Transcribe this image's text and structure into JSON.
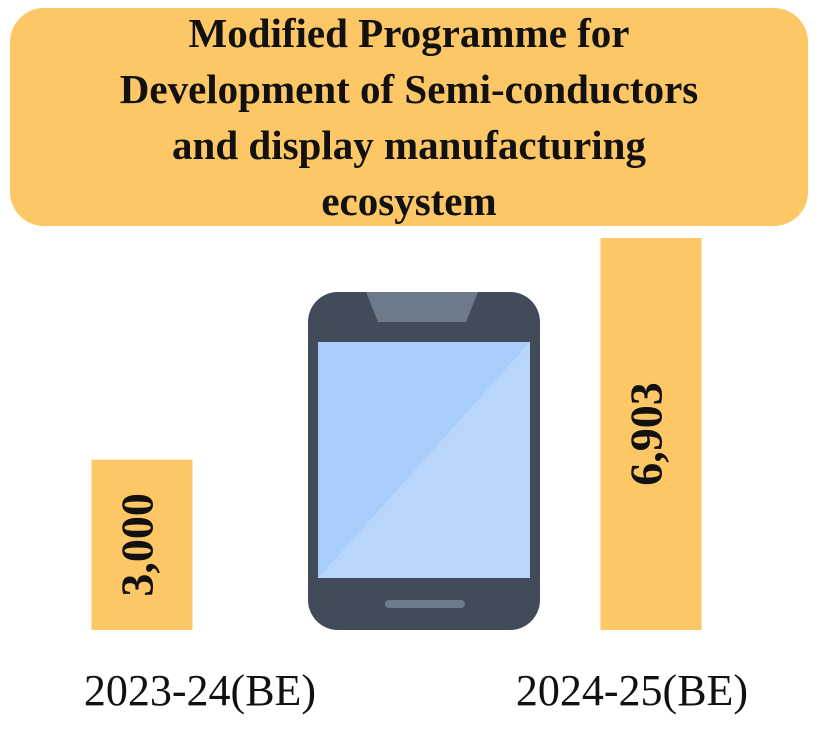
{
  "chart_data": {
    "type": "bar",
    "title": "Modified Programme for Development of Semi-conductors and display manufacturing ecosystem",
    "categories": [
      "2023-24(BE)",
      "2024-25(BE)"
    ],
    "values": [
      3000,
      6903
    ],
    "value_labels": [
      "3,000",
      "6,903"
    ],
    "color": "#fdc765"
  }
}
